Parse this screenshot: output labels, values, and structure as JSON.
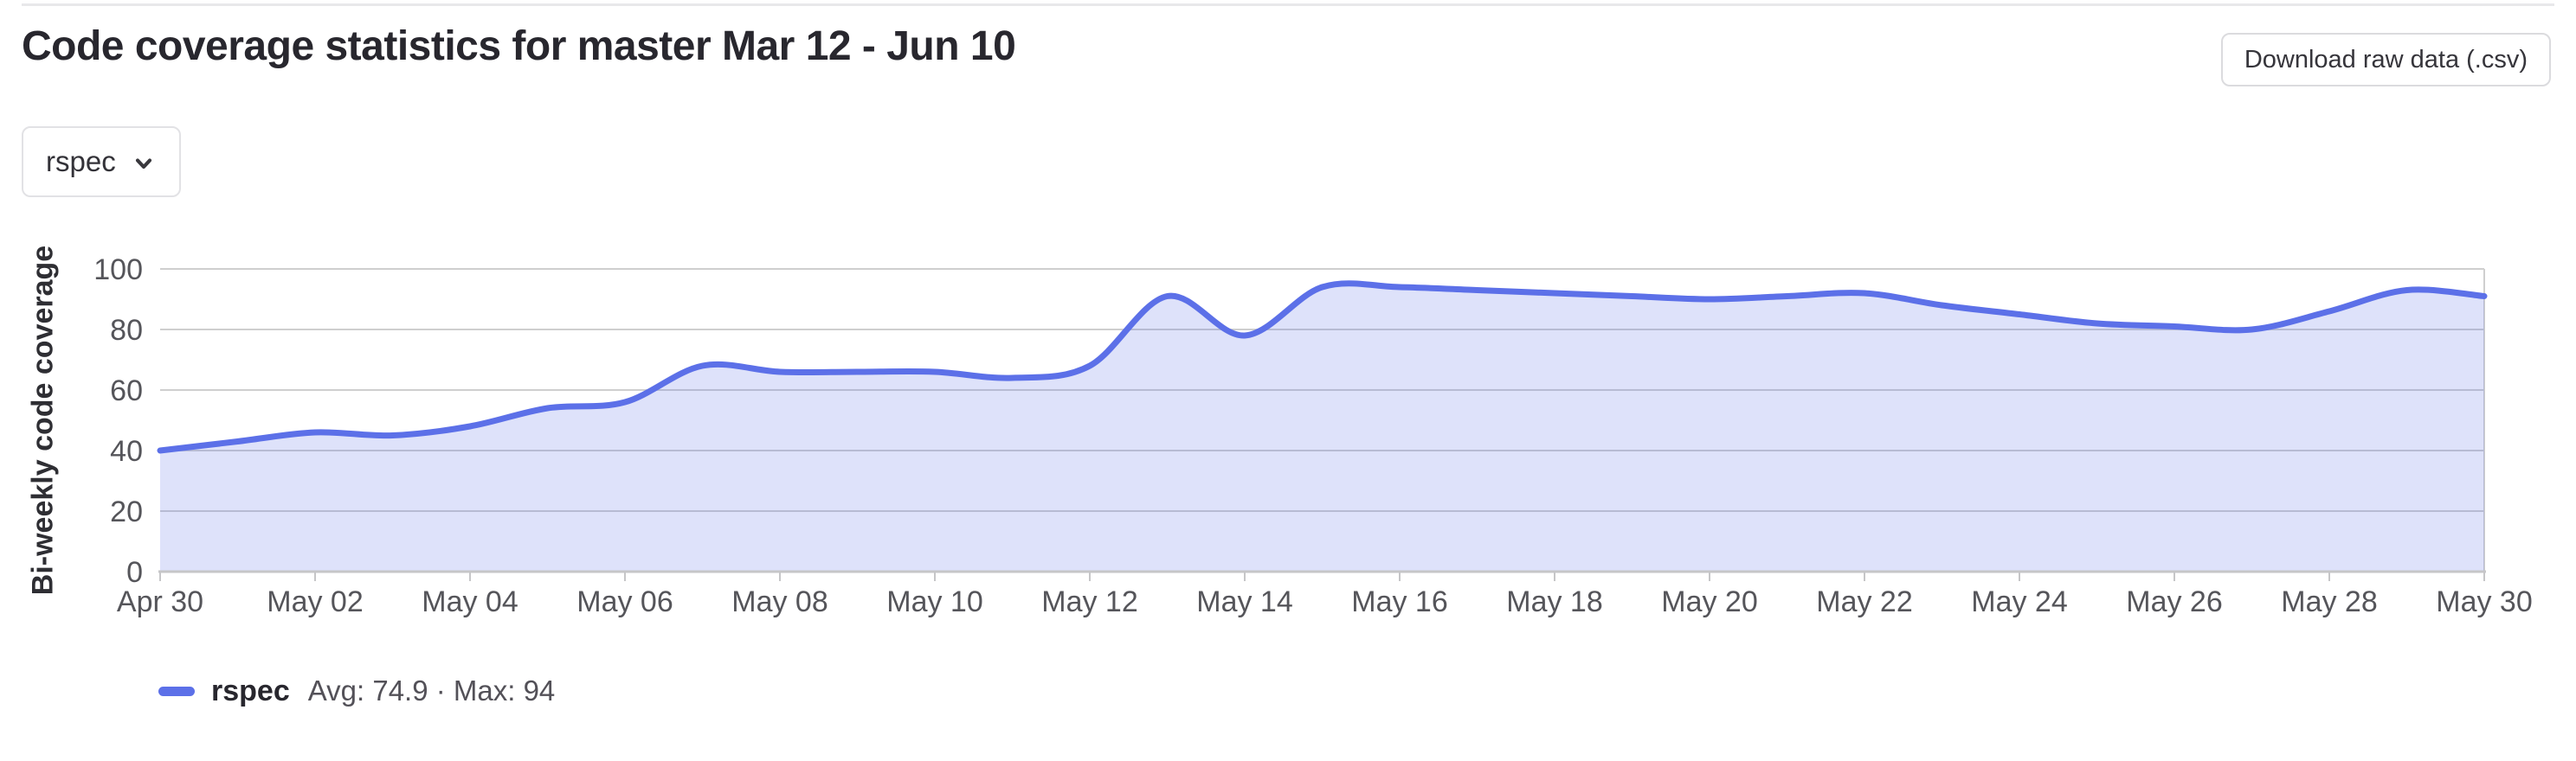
{
  "header": {
    "title": "Code coverage statistics for master Mar 12 - Jun 10",
    "download_button_label": "Download raw data (.csv)"
  },
  "filter_dropdown": {
    "selected_option": "rspec"
  },
  "icons": {
    "dropdown_chevron": "chevron-down-icon"
  },
  "chart_data": {
    "type": "area",
    "title": "",
    "ylabel": "Bi-weekly code coverage",
    "xlabel": "",
    "ylim": [
      0,
      100
    ],
    "y_ticks": [
      0,
      20,
      40,
      60,
      80,
      100
    ],
    "x_tick_labels": [
      "Apr 30",
      "May 02",
      "May 04",
      "May 06",
      "May 08",
      "May 10",
      "May 12",
      "May 14",
      "May 16",
      "May 18",
      "May 20",
      "May 22",
      "May 24",
      "May 26",
      "May 28",
      "May 30"
    ],
    "x_tick_every_n_days": 2,
    "series": [
      {
        "name": "rspec",
        "values": [
          40,
          43,
          46,
          45,
          48,
          54,
          56,
          68,
          66,
          66,
          66,
          64,
          68,
          91,
          78,
          94,
          94,
          93,
          92,
          91,
          90,
          91,
          92,
          88,
          85,
          82,
          81,
          80,
          86,
          93,
          91
        ]
      }
    ],
    "grid": true,
    "smooth": true,
    "legend_position": "bottom",
    "line_color": "#5c70e8",
    "area_fill_opacity": 0.2,
    "gridline_color": "#cfcfcf",
    "axis_line_color": "#c6c6c8",
    "tick_label_color": "#55555a"
  },
  "legend": {
    "series_name": "rspec",
    "stats": "Avg: 74.9 · Max: 94",
    "avg": 74.9,
    "max": 94,
    "swatch_color": "#5c70e8"
  }
}
